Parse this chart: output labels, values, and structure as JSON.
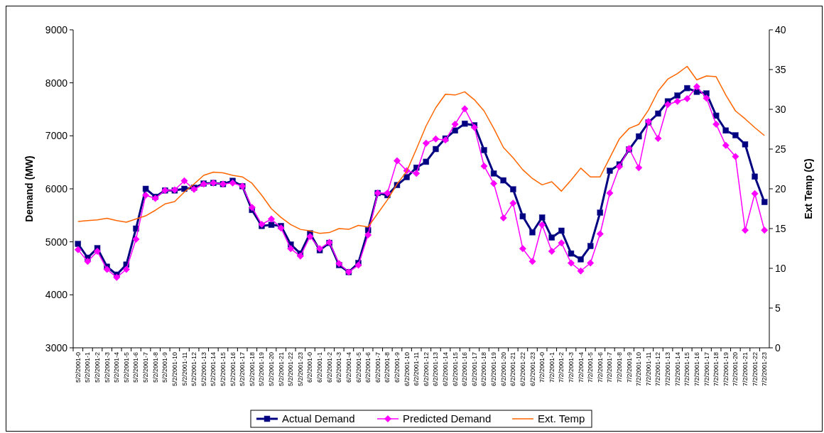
{
  "chart_data": {
    "type": "line",
    "xlabel": null,
    "ylabel": "Demand (MW)",
    "y2label": "Ext Temp (C)",
    "categories": [
      "5/2/2001-0",
      "5/2/2001-1",
      "5/2/2001-2",
      "5/2/2001-3",
      "5/2/2001-4",
      "5/2/2001-5",
      "5/2/2001-6",
      "5/2/2001-7",
      "5/2/2001-8",
      "5/2/2001-9",
      "5/2/2001-10",
      "5/2/2001-11",
      "5/2/2001-12",
      "5/2/2001-13",
      "5/2/2001-14",
      "5/2/2001-15",
      "5/2/2001-16",
      "5/2/2001-17",
      "5/2/2001-18",
      "5/2/2001-19",
      "5/2/2001-20",
      "5/2/2001-21",
      "5/2/2001-22",
      "5/2/2001-23",
      "6/2/2001-0",
      "6/2/2001-1",
      "6/2/2001-2",
      "6/2/2001-3",
      "6/2/2001-4",
      "6/2/2001-5",
      "6/2/2001-6",
      "6/2/2001-7",
      "6/2/2001-8",
      "6/2/2001-9",
      "6/2/2001-10",
      "6/2/2001-11",
      "6/2/2001-12",
      "6/2/2001-13",
      "6/2/2001-14",
      "6/2/2001-15",
      "6/2/2001-16",
      "6/2/2001-17",
      "6/2/2001-18",
      "6/2/2001-19",
      "6/2/2001-20",
      "6/2/2001-21",
      "6/2/2001-22",
      "6/2/2001-23",
      "7/2/2001-0",
      "7/2/2001-1",
      "7/2/2001-2",
      "7/2/2001-3",
      "7/2/2001-4",
      "7/2/2001-5",
      "7/2/2001-6",
      "7/2/2001-7",
      "7/2/2001-8",
      "7/2/2001-9",
      "7/2/2001-10",
      "7/2/2001-11",
      "7/2/2001-12",
      "7/2/2001-13",
      "7/2/2001-14",
      "7/2/2001-15",
      "7/2/2001-16",
      "7/2/2001-17",
      "7/2/2001-18",
      "7/2/2001-19",
      "7/2/2001-20",
      "7/2/2001-21",
      "7/2/2001-22",
      "7/2/2001-23"
    ],
    "series": [
      {
        "name": "Actual Demand",
        "color": "#000080",
        "marker": "square",
        "values": [
          4960,
          4700,
          4880,
          4530,
          4380,
          4570,
          5250,
          6000,
          5850,
          5970,
          5970,
          6000,
          6020,
          6100,
          6110,
          6090,
          6150,
          6050,
          5600,
          5300,
          5320,
          5300,
          4950,
          4780,
          5160,
          4840,
          4980,
          4560,
          4430,
          4600,
          5220,
          5920,
          5880,
          6070,
          6220,
          6400,
          6510,
          6750,
          6950,
          7100,
          7230,
          7200,
          6730,
          6290,
          6160,
          5990,
          5480,
          5180,
          5460,
          5080,
          5210,
          4780,
          4670,
          4920,
          5550,
          6340,
          6460,
          6740,
          6990,
          7250,
          7420,
          7650,
          7760,
          7900,
          7830,
          7800,
          7380,
          7100,
          7010,
          6840,
          6230,
          5750
        ]
      },
      {
        "name": "Predicted Demand",
        "color": "#ff00ff",
        "marker": "diamond",
        "values": [
          4850,
          4630,
          4820,
          4480,
          4330,
          4480,
          5050,
          5880,
          5820,
          5970,
          5980,
          6150,
          5990,
          6090,
          6110,
          6090,
          6110,
          6050,
          5650,
          5330,
          5430,
          5260,
          4870,
          4730,
          5100,
          4870,
          4990,
          4590,
          4430,
          4560,
          5130,
          5920,
          5920,
          6530,
          6340,
          6290,
          6860,
          6940,
          6920,
          7220,
          7510,
          7160,
          6430,
          6100,
          5450,
          5730,
          4870,
          4630,
          5320,
          4820,
          4980,
          4600,
          4450,
          4600,
          5150,
          5920,
          6420,
          6760,
          6400,
          7270,
          6950,
          7590,
          7650,
          7700,
          7930,
          7710,
          7220,
          6820,
          6610,
          5220,
          5910,
          5220
        ]
      },
      {
        "name": "Ext. Temp",
        "color": "#ff6600",
        "marker": "none",
        "axis": "y2",
        "values": [
          15.9,
          16.0,
          16.1,
          16.3,
          16.0,
          15.8,
          16.2,
          16.6,
          17.3,
          18.1,
          18.4,
          19.6,
          20.6,
          21.7,
          22.1,
          22.0,
          21.7,
          21.5,
          20.7,
          19.2,
          17.5,
          16.4,
          15.5,
          14.9,
          14.7,
          14.4,
          14.5,
          15.0,
          14.9,
          15.4,
          15.2,
          16.9,
          18.6,
          20.6,
          22.2,
          25.0,
          27.9,
          30.2,
          31.9,
          31.8,
          32.2,
          31.2,
          29.8,
          27.6,
          25.2,
          23.9,
          22.4,
          21.3,
          20.5,
          20.9,
          19.7,
          21.1,
          22.6,
          21.5,
          21.5,
          23.9,
          26.3,
          27.6,
          28.1,
          29.9,
          32.3,
          33.8,
          34.5,
          35.4,
          33.7,
          34.2,
          34.1,
          31.8,
          29.8,
          28.8,
          27.7,
          26.7
        ]
      }
    ],
    "ylim": [
      3000,
      9000
    ],
    "yticks": [
      3000,
      4000,
      5000,
      6000,
      7000,
      8000,
      9000
    ],
    "y2lim": [
      0,
      40
    ],
    "y2ticks": [
      0,
      5,
      10,
      15,
      20,
      25,
      30,
      35,
      40
    ],
    "grid": false,
    "legend": "bottom",
    "line_style": "solid"
  }
}
